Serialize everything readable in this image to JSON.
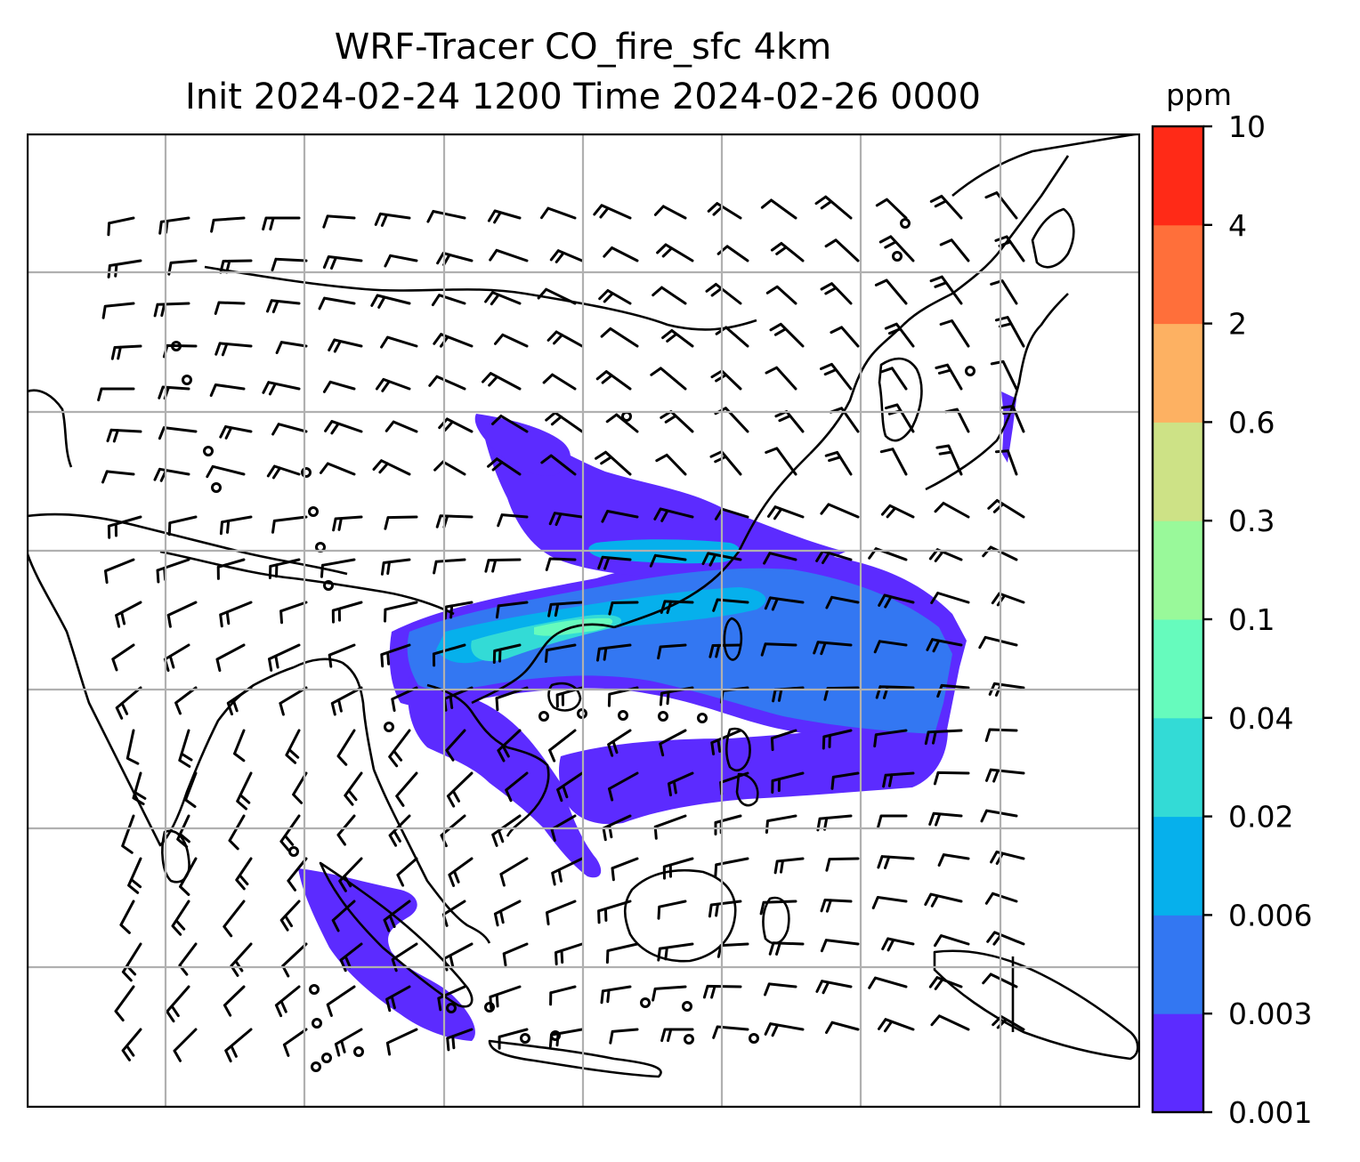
{
  "title": {
    "line1": "WRF-Tracer CO_fire_sfc 4km",
    "line2": "Init 2024-02-24 1200 Time 2024-02-26 0000"
  },
  "colorbar": {
    "unit": "ppm",
    "levels": [
      "0.001",
      "0.003",
      "0.006",
      "0.02",
      "0.04",
      "0.1",
      "0.3",
      "0.6",
      "2",
      "4",
      "10"
    ],
    "colors": [
      "#5c2bff",
      "#3377f2",
      "#06b0ec",
      "#33dbd6",
      "#66fbbd",
      "#99f99a",
      "#cde286",
      "#fdb162",
      "#ff6f3a",
      "#ff2a17"
    ]
  },
  "map": {
    "field": "CO_fire_sfc",
    "grid": "on",
    "wind_barbs": "on",
    "coastlines": "on"
  }
}
